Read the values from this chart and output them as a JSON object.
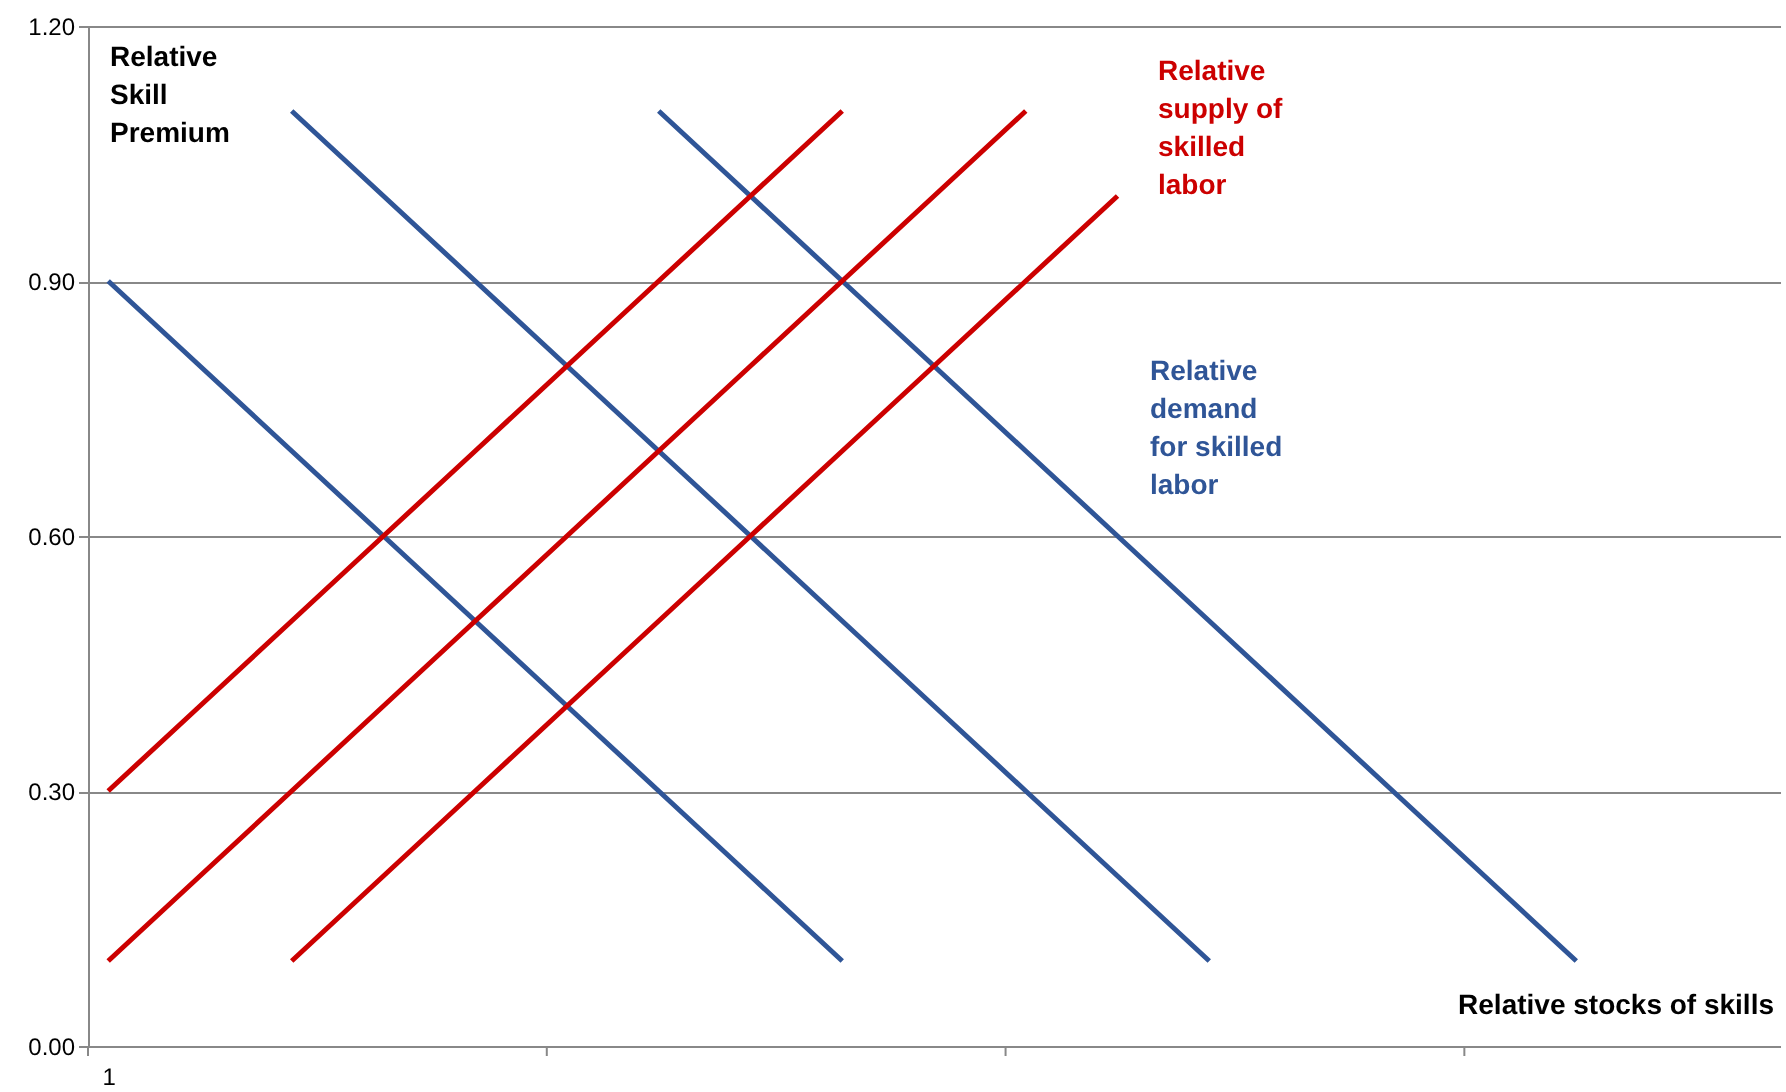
{
  "chart_data": {
    "type": "line",
    "xlabel": "Relative stocks of skills",
    "ylabel": "Relative Skill Premium",
    "categories": [
      "1",
      null,
      null,
      null,
      null,
      null,
      null,
      null,
      null,
      null,
      null,
      null,
      null,
      null,
      null,
      null,
      null,
      null,
      null
    ],
    "series": [
      {
        "color": "#2f5597",
        "values": [
          0.9,
          0.8,
          0.7,
          0.6,
          0.5,
          0.4,
          0.3,
          0.2,
          0.1,
          null,
          null,
          null,
          null,
          null,
          null,
          null,
          null,
          null,
          null
        ]
      },
      {
        "color": "#2f5597",
        "values": [
          null,
          null,
          1.1,
          1.0,
          0.9,
          0.8,
          0.7,
          0.6,
          0.5,
          0.4,
          0.3,
          0.2,
          0.1,
          null,
          null,
          null,
          null,
          null,
          null
        ]
      },
      {
        "color": "#2f5597",
        "values": [
          null,
          null,
          null,
          null,
          null,
          null,
          1.1,
          1.0,
          0.9,
          0.8,
          0.7,
          0.6,
          0.5,
          0.4,
          0.3,
          0.2,
          0.1,
          null,
          null
        ]
      },
      {
        "color": "#cc0000",
        "values": [
          0.3,
          0.4,
          0.5,
          0.6,
          0.7,
          0.8,
          0.9,
          1.0,
          1.1,
          null,
          null,
          null,
          null,
          null,
          null,
          null,
          null,
          null,
          null
        ]
      },
      {
        "color": "#cc0000",
        "values": [
          0.1,
          0.2,
          0.3,
          0.4,
          0.5,
          0.6,
          0.7,
          0.8,
          0.9,
          1.0,
          1.1,
          null,
          null,
          null,
          null,
          null,
          null,
          null,
          null
        ]
      },
      {
        "color": "#cc0000",
        "values": [
          null,
          null,
          0.1,
          0.2,
          0.3,
          0.4,
          0.5,
          0.6,
          0.7,
          0.8,
          0.9,
          1.0,
          null,
          null,
          null,
          null,
          null,
          null,
          null
        ]
      }
    ],
    "annotations": [
      "Relative supply of skilled labor",
      "Relative demand for skilled labor"
    ],
    "ylim": [
      0,
      1.2
    ],
    "yticks": [
      {
        "value": 0,
        "label": "0.00"
      },
      {
        "value": 0.3,
        "label": "0.30"
      },
      {
        "value": 0.6,
        "label": "0.60"
      },
      {
        "value": 0.9,
        "label": "0.90"
      },
      {
        "value": 1.2,
        "label": "1.20"
      }
    ],
    "grid": "y",
    "marker": "none",
    "line_style": "solid"
  }
}
